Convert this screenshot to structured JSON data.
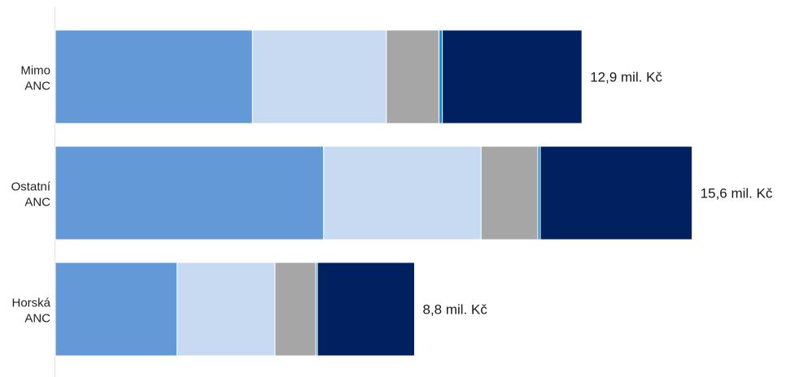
{
  "chart_data": {
    "type": "bar",
    "orientation": "horizontal",
    "stacked": true,
    "categories": [
      [
        "Mimo",
        "ANC"
      ],
      [
        "Ostatní",
        "ANC"
      ],
      [
        "Horská",
        "ANC"
      ]
    ],
    "total_labels": [
      "12,9 mil. Kč",
      "15,6 mil. Kč",
      "8,8 mil. Kč"
    ],
    "series": [
      {
        "color": "#6399d7",
        "values": [
          4.83,
          6.57,
          2.98
        ]
      },
      {
        "color": "#c8daf1",
        "values": [
          3.28,
          3.86,
          2.4
        ]
      },
      {
        "color": "#a6a6a6",
        "values": [
          1.29,
          1.39,
          1.0
        ]
      },
      {
        "color": "#1b87d4",
        "values": [
          0.08,
          0.06,
          0.04
        ]
      },
      {
        "color": "#002060",
        "values": [
          3.42,
          3.72,
          2.38
        ]
      }
    ],
    "xlim": [
      0,
      17.5
    ],
    "grid": false,
    "legend": "none"
  }
}
